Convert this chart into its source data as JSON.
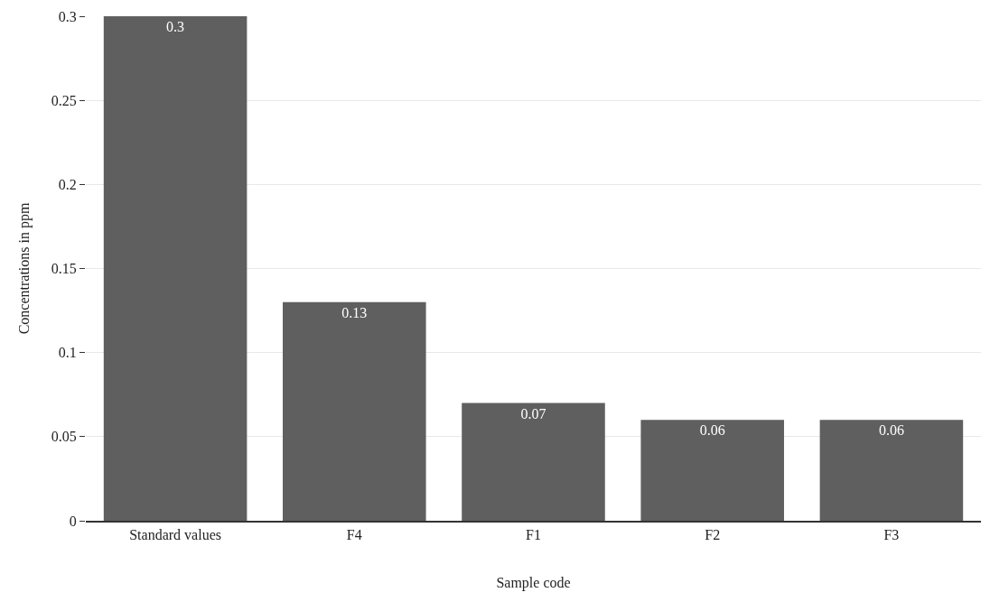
{
  "chart_data": {
    "type": "bar",
    "xlabel": "Sample code",
    "ylabel": "Concentrations in ppm",
    "categories": [
      "Standard values",
      "F4",
      "F1",
      "F2",
      "F3"
    ],
    "values": [
      0.3,
      0.13,
      0.07,
      0.06,
      0.06
    ],
    "color": "#5f5f5f",
    "data_labels": true,
    "ylim": [
      0,
      0.3
    ],
    "yticks": [
      0,
      0.05,
      0.1,
      0.15,
      0.2,
      0.25,
      0.3
    ],
    "grid": "y"
  }
}
